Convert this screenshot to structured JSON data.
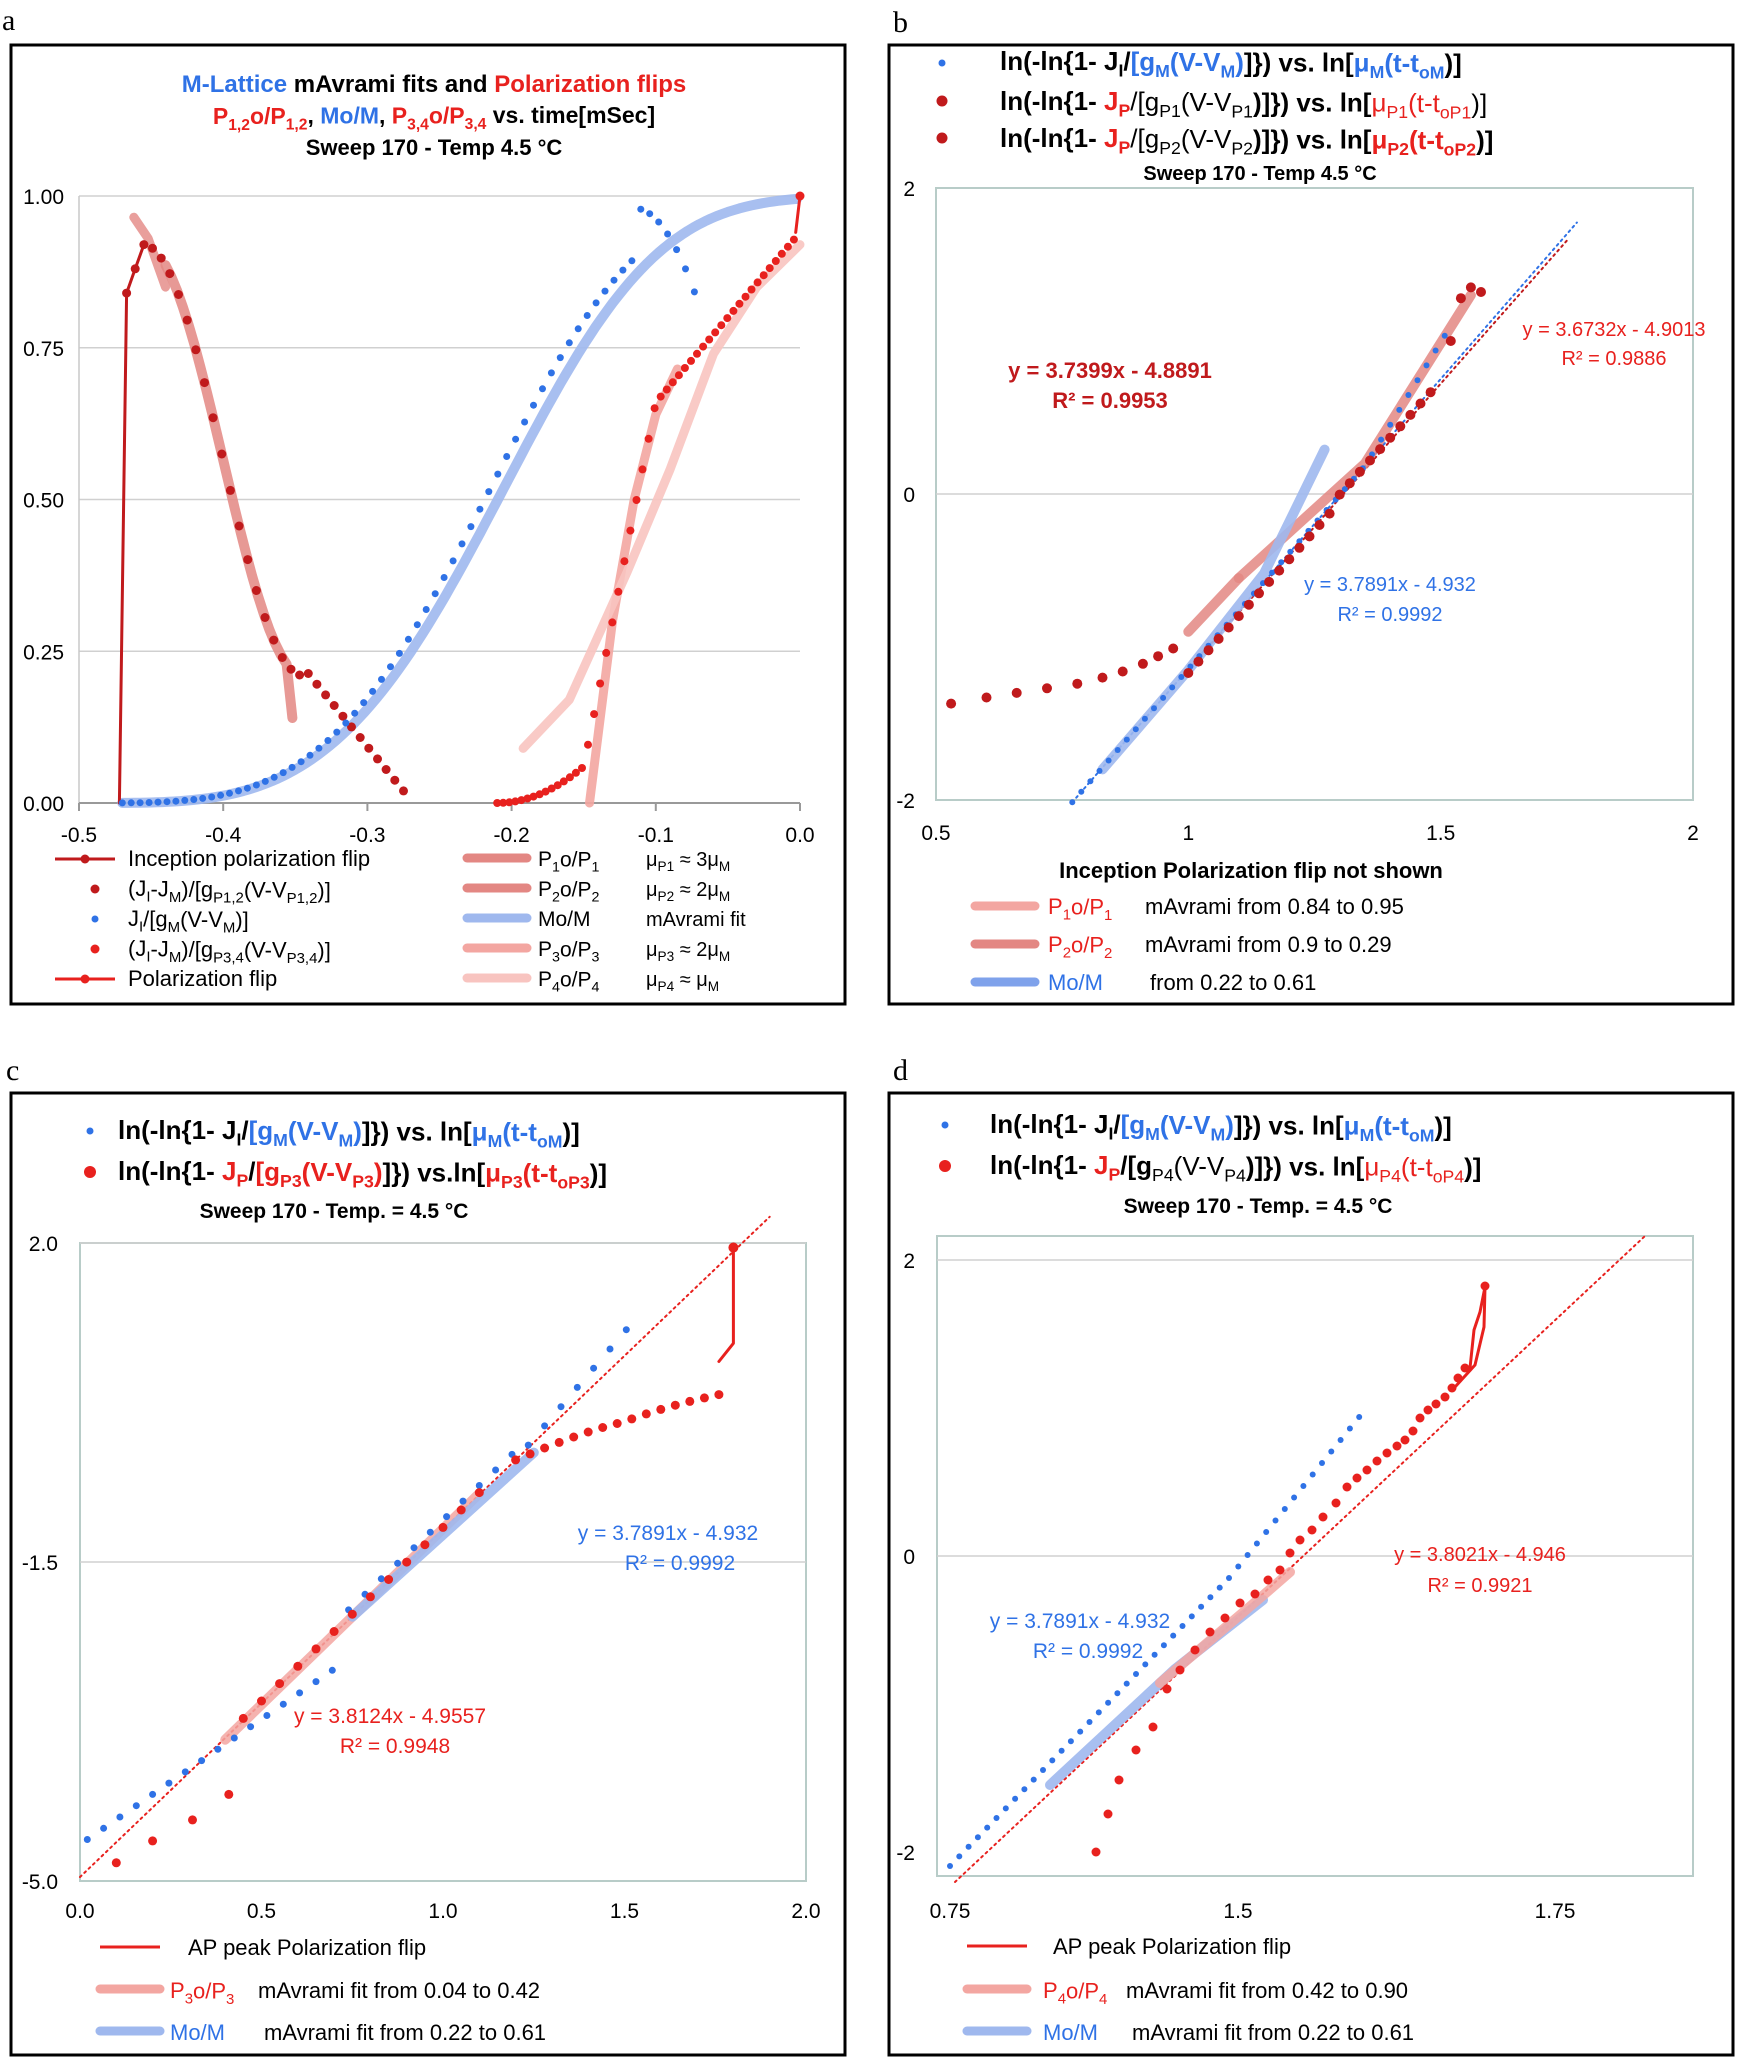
{
  "colors": {
    "red": "#e8211e",
    "darkred": "#c01a1c",
    "blue": "#2f72e6",
    "lightblue": "#9fb8ee",
    "salmon": "#e38783",
    "pink": "#f3a6a1",
    "lightpink": "#f8c4c0",
    "grid": "#d0d0d0",
    "plotborder": "#b8ccc8"
  },
  "chart_data": [
    {
      "panel": "a",
      "type": "line",
      "title_line1": [
        "M-Lattice",
        " mAvrami fits and ",
        "Polarization flips"
      ],
      "title_line2": [
        "P1,2o/P1,2",
        ", ",
        "Mo/M",
        ", ",
        "P3,4o/P3,4",
        " vs. time[mSec]"
      ],
      "title_line3": "Sweep 170 - Temp 4.5 °C",
      "xlim": [
        -0.5,
        0.0
      ],
      "ylim": [
        0,
        1.0
      ],
      "xticks": [
        "-0.5",
        "-0.4",
        "-0.3",
        "-0.2",
        "-0.1",
        "0.0"
      ],
      "yticks": [
        "0.00",
        "0.25",
        "0.50",
        "0.75",
        "1.00"
      ],
      "series": [
        {
          "name": "Inception polarization flip",
          "x": [
            -0.472,
            -0.472,
            -0.467
          ],
          "y": [
            0.0,
            0.0,
            0.84
          ]
        },
        {
          "name": "(JI-JM)/[gP1,2(V-VP1,2)]",
          "x": [
            -0.467,
            -0.275
          ],
          "y_note": "decaying curve from 0.84 peaking at 0.92 near -0.455 down to 0.02 at -0.275"
        },
        {
          "name": "JI/[gM(V-VM)]",
          "x_range": [
            -0.472,
            -0.07
          ],
          "y_note": "rises from 0 to 0.98 near -0.115 then falls to 0.82"
        },
        {
          "name": "(JI-JM)/[gP3,4(V-VP3,4)]",
          "x_range": [
            -0.21,
            0.0
          ],
          "y_note": "rises from 0 to 1.0"
        },
        {
          "name": "Polarization flip",
          "x": [
            -0.004,
            0.0
          ],
          "y": [
            0.94,
            1.0
          ]
        }
      ],
      "legend": [
        {
          "label": "Inception polarization flip",
          "note": ""
        },
        {
          "label": "(JI-JM)/[gP1,2(V-VP1,2)]",
          "note": ""
        },
        {
          "label": "JI/[gM(V-VM)]",
          "note": ""
        },
        {
          "label": "(JI-JM)/[gP3,4(V-VP3,4)]",
          "note": ""
        },
        {
          "label": "Polarization flip",
          "note": ""
        },
        {
          "label": "P1o/P1",
          "note": "μP1 ≈ 3μM"
        },
        {
          "label": "P2o/P2",
          "note": "μP2 ≈ 2μM"
        },
        {
          "label": "Mo/M",
          "note": "mAvrami fit"
        },
        {
          "label": "P3o/P3",
          "note": "μP3 ≈ 2μM"
        },
        {
          "label": "P4o/P4",
          "note": "μP4 ≈ μM"
        }
      ]
    },
    {
      "panel": "b",
      "type": "scatter",
      "title_lines": [
        "ln(-ln{1- JI/[gM(V-VM)]}) vs. ln[μM(t-toM)]",
        "ln(-ln{1- JP/[gP1(V-VP1)]}) vs. ln[μP1(t-toP1)]",
        "ln(-ln{1- JP/[gP2(V-VP2)]}) vs. ln[μP2(t-toP2)]"
      ],
      "subtitle": "Sweep 170 - Temp 4.5 °C",
      "xlim": [
        0.5,
        2.0
      ],
      "ylim": [
        -2,
        2
      ],
      "xticks": [
        "0.5",
        "1",
        "1.5",
        "2"
      ],
      "yticks": [
        "-2",
        "0",
        "2"
      ],
      "annotations": [
        {
          "eq": "y = 3.7399x - 4.8891",
          "r2": "R² = 0.9953"
        },
        {
          "eq": "y = 3.6732x - 4.9013",
          "r2": "R² = 0.9886"
        },
        {
          "eq": "y = 3.7891x - 4.932",
          "r2": "R² = 0.9992"
        }
      ],
      "note": "Inception Polarization flip not shown",
      "legend": [
        {
          "label": "P1o/P1",
          "text": "mAvrami  from 0.84 to 0.95"
        },
        {
          "label": "P2o/P2",
          "text": "mAvrami   from 0.9 to 0.29"
        },
        {
          "label": "Mo/M",
          "text": "from 0.22 to 0.61"
        }
      ]
    },
    {
      "panel": "c",
      "type": "scatter",
      "title_lines": [
        "ln(-ln{1- JI/[gM(V-VM)]}) vs. ln[μM(t-toM)]",
        "ln(-ln{1- JP/[gP3(V-VP3)]}) vs.ln[μP3(t-toP3)]"
      ],
      "subtitle": "Sweep 170 - Temp. = 4.5 °C",
      "xlim": [
        0.0,
        2.0
      ],
      "ylim": [
        -5.0,
        2.0
      ],
      "xticks": [
        "0.0",
        "0.5",
        "1.0",
        "1.5",
        "2.0"
      ],
      "yticks": [
        "-5.0",
        "-1.5",
        "2.0"
      ],
      "annotations": [
        {
          "eq": "y = 3.7891x - 4.932",
          "r2": "R² = 0.9992"
        },
        {
          "eq": "y = 3.8124x - 4.9557",
          "r2": "R² = 0.9948"
        }
      ],
      "legend": [
        {
          "label": "AP peak Polarization flip",
          "text": ""
        },
        {
          "label": "P3o/P3",
          "text": "mAvrami fit from 0.04  to  0.42"
        },
        {
          "label": "Mo/M",
          "text": "mAvrami fit from  0.22 to 0.61"
        }
      ]
    },
    {
      "panel": "d",
      "type": "scatter",
      "title_lines": [
        "ln(-ln{1- JI/[gM(V-VM)]}) vs. ln[μM(t-toM)]",
        "ln(-ln{1- JP/[gP4(V-VP4)]}) vs. ln[μP4(t-toP4)]"
      ],
      "subtitle": "Sweep 170 - Temp. = 4.5 °C",
      "xlim": [
        0.75,
        2.0
      ],
      "ylim": [
        -2,
        2
      ],
      "xticks": [
        "0.75",
        "1.5",
        "1.75"
      ],
      "yticks": [
        "-2",
        "0",
        "2"
      ],
      "annotations": [
        {
          "eq": "y = 3.8021x - 4.946",
          "r2": "R² = 0.9921"
        },
        {
          "eq": "y = 3.7891x - 4.932",
          "r2": "R² = 0.9992"
        }
      ],
      "legend": [
        {
          "label": "AP peak Polarization flip",
          "text": ""
        },
        {
          "label": "P4o/P4",
          "text": "mAvrami fit from 0.42  to  0.90"
        },
        {
          "label": "Mo/M",
          "text": "mAvrami fit from  0.22 to 0.61"
        }
      ]
    }
  ],
  "panel_letters": [
    "a",
    "b",
    "c",
    "d"
  ]
}
